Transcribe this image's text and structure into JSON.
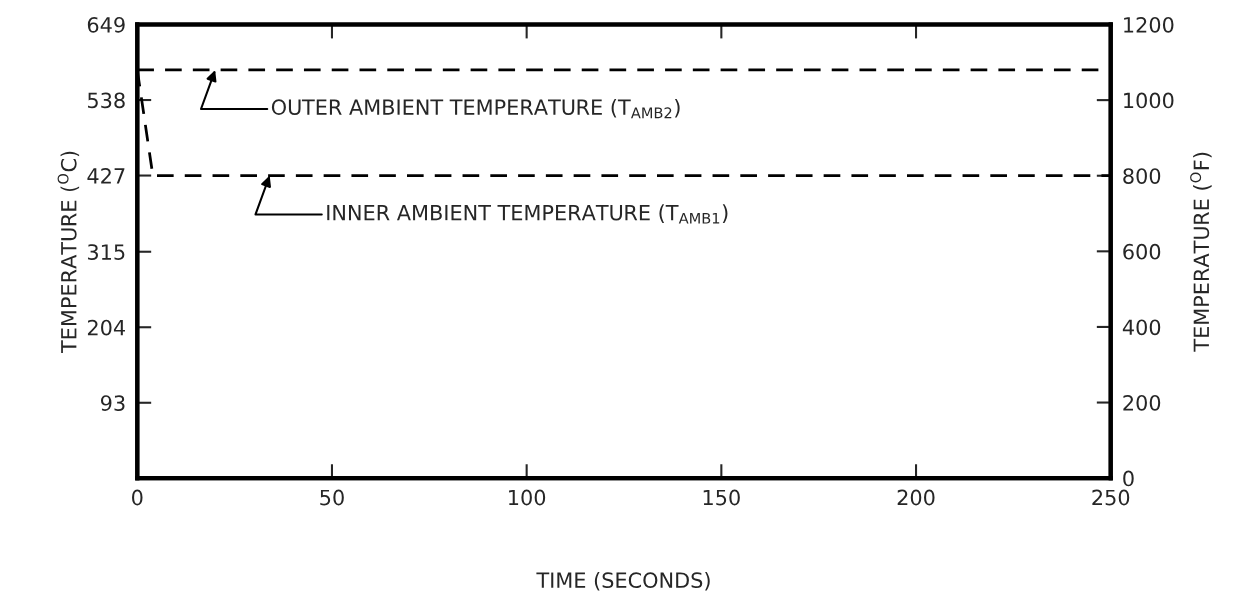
{
  "chart_data": {
    "type": "line",
    "xlabel": "TIME (SECONDS)",
    "ylabel": "TEMPERATURE ($^{O}$C)",
    "y2label": "TEMPERATURE ($^{O}$F)",
    "xlim": [
      0,
      250
    ],
    "xticks": [
      0,
      50,
      100,
      150,
      200,
      250
    ],
    "ylim": [
      -17.8,
      649
    ],
    "yticks": [
      93,
      204,
      315,
      427,
      538,
      649
    ],
    "y2lim": [
      0,
      1200
    ],
    "y2ticks": [
      0,
      200,
      400,
      600,
      800,
      1000,
      1200
    ],
    "line_style": "dashed",
    "marker": "none",
    "grid": false,
    "series": [
      {
        "color": "#000000",
        "axis": "y2",
        "x": [
          0,
          250
        ],
        "values": [
          1080,
          1080
        ]
      },
      {
        "color": "#000000",
        "axis": "y2",
        "x": [
          0,
          4,
          250
        ],
        "values": [
          1080,
          800,
          800
        ]
      }
    ],
    "annotations": [
      {
        "text": "OUTER AMBIENT TEMPERATURE (T$_{AMB2}$)",
        "x": 20,
        "y": 582
      },
      {
        "text": "INNER AMBIENT TEMPERATURE (T$_{AMB1}$)",
        "x": 34,
        "y": 427
      }
    ]
  }
}
